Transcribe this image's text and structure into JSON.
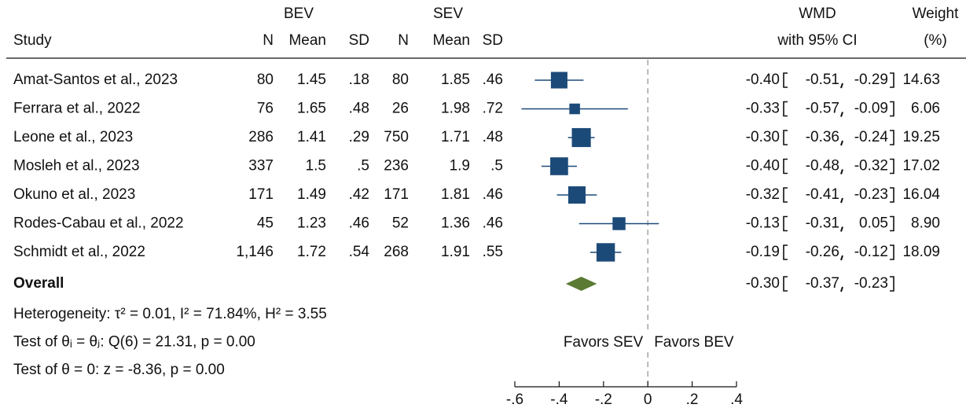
{
  "chart_data": {
    "type": "forest",
    "columns": {
      "study": "Study",
      "bev": "BEV",
      "sev": "SEV",
      "n": "N",
      "mean": "Mean",
      "sd": "SD",
      "wmd": "WMD",
      "ci": "with 95% CI",
      "weight": "Weight",
      "weight_unit": "(%)"
    },
    "studies": [
      "Amat-Santos et al., 2023",
      "Ferrara et al., 2022",
      "Leone et al., 2023",
      "Mosleh et al., 2023",
      "Okuno et al., 2023",
      "Rodes-Cabau et al., 2022",
      "Schmidt et al., 2022"
    ],
    "bev": {
      "n": [
        "80",
        "76",
        "286",
        "337",
        "171",
        "45",
        "1,146"
      ],
      "mean": [
        "1.45",
        "1.65",
        "1.41",
        "1.5",
        "1.49",
        "1.23",
        "1.72"
      ],
      "sd": [
        ".18",
        ".48",
        ".29",
        ".5",
        ".42",
        ".46",
        ".54"
      ]
    },
    "sev": {
      "n": [
        "80",
        "26",
        "750",
        "236",
        "171",
        "52",
        "268"
      ],
      "mean": [
        "1.85",
        "1.98",
        "1.71",
        "1.9",
        "1.81",
        "1.36",
        "1.91"
      ],
      "sd": [
        ".46",
        ".72",
        ".48",
        ".5",
        ".46",
        ".46",
        ".55"
      ]
    },
    "wmd": {
      "values": [
        -0.4,
        -0.33,
        -0.3,
        -0.4,
        -0.32,
        -0.13,
        -0.19
      ],
      "value_labels": [
        "-0.40",
        "-0.33",
        "-0.30",
        "-0.40",
        "-0.32",
        "-0.13",
        "-0.19"
      ]
    },
    "ci_lower": {
      "values": [
        -0.51,
        -0.57,
        -0.36,
        -0.48,
        -0.41,
        -0.31,
        -0.26
      ],
      "value_labels": [
        "-0.51",
        "-0.57",
        "-0.36",
        "-0.48",
        "-0.41",
        "-0.31",
        "-0.26"
      ]
    },
    "ci_upper": {
      "values": [
        -0.29,
        -0.09,
        -0.24,
        -0.32,
        -0.23,
        0.05,
        -0.12
      ],
      "value_labels": [
        "-0.29",
        "-0.09",
        "-0.24",
        "-0.32",
        "-0.23",
        "0.05",
        "-0.12"
      ]
    },
    "weight": {
      "values": [
        14.63,
        6.06,
        19.25,
        17.02,
        16.04,
        8.9,
        18.09
      ],
      "value_labels": [
        "14.63",
        "6.06",
        "19.25",
        "17.02",
        "16.04",
        "8.90",
        "18.09"
      ]
    },
    "overall": {
      "label": "Overall",
      "values": [
        -0.3,
        -0.37,
        -0.23
      ],
      "value_labels": [
        "-0.30",
        "-0.37",
        "-0.23"
      ]
    },
    "color": "#1c4a78",
    "overall_color": "#5b7a34",
    "xlim": [
      -0.6,
      0.4
    ],
    "xticks": [
      {
        "value": -0.6,
        "label": "-.6"
      },
      {
        "value": -0.4,
        "label": "-.4"
      },
      {
        "value": -0.2,
        "label": "-.2"
      },
      0,
      {
        "value": 0.2,
        "label": ".2"
      },
      {
        "value": 0.4,
        "label": ".4"
      }
    ],
    "favors_left": "Favors SEV",
    "favors_right": "Favors BEV",
    "notes": [
      "Heterogeneity: τ² = 0.01, I² = 71.84%, H² = 3.55",
      "Test of θᵢ = θⱼ: Q(6) = 21.31, p = 0.00",
      "Test of θ = 0: z = -8.36, p = 0.00"
    ]
  }
}
